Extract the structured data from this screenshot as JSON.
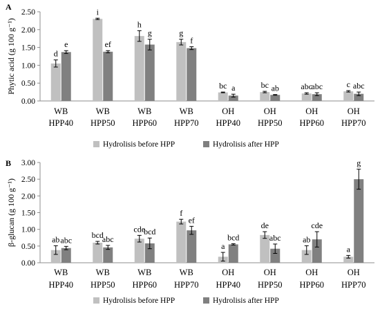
{
  "chart_data": [
    {
      "type": "bar",
      "panel_label": "A",
      "ylabel": "Phytic acid (g 100 g⁻¹)",
      "ylim": [
        0,
        2.5
      ],
      "yticks": [
        "0.00",
        "0.50",
        "1.00",
        "1.50",
        "2.00",
        "2.50"
      ],
      "categories": [
        [
          "WB",
          "HPP40"
        ],
        [
          "WB",
          "HPP50"
        ],
        [
          "WB",
          "HPP60"
        ],
        [
          "WB",
          "HPP70"
        ],
        [
          "OH",
          "HPP40"
        ],
        [
          "OH",
          "HPP50"
        ],
        [
          "OH",
          "HPP60"
        ],
        [
          "OH",
          "HPP70"
        ]
      ],
      "grid": false,
      "legend_position": "bottom",
      "series": [
        {
          "name": "Hydrolisis before HPP",
          "color": "#c0c0c0",
          "values": [
            1.05,
            2.3,
            1.82,
            1.65,
            0.24,
            0.25,
            0.21,
            0.27
          ],
          "errors": [
            0.1,
            0.02,
            0.15,
            0.08,
            0.01,
            0.02,
            0.02,
            0.02
          ],
          "labels": [
            "d",
            "i",
            "h",
            "g",
            "bc",
            "bc",
            "abc",
            "c"
          ]
        },
        {
          "name": "Hydrolisis after HPP",
          "color": "#808080",
          "values": [
            1.37,
            1.38,
            1.58,
            1.48,
            0.15,
            0.17,
            0.19,
            0.2
          ],
          "errors": [
            0.04,
            0.03,
            0.15,
            0.04,
            0.04,
            0.01,
            0.04,
            0.05
          ],
          "labels": [
            "e",
            "ef",
            "g",
            "f",
            "a",
            "ab",
            "abc",
            "abc"
          ]
        }
      ]
    },
    {
      "type": "bar",
      "panel_label": "B",
      "ylabel": "β-glucan (g 100 g⁻¹)",
      "ylim": [
        0,
        3.0
      ],
      "yticks": [
        "0.00",
        "0.50",
        "1.00",
        "1.50",
        "2.00",
        "2.50",
        "3.00"
      ],
      "categories": [
        [
          "WB",
          "HPP40"
        ],
        [
          "WB",
          "HPP50"
        ],
        [
          "WB",
          "HPP60"
        ],
        [
          "WB",
          "HPP70"
        ],
        [
          "OH",
          "HPP40"
        ],
        [
          "OH",
          "HPP50"
        ],
        [
          "OH",
          "HPP60"
        ],
        [
          "OH",
          "HPP70"
        ]
      ],
      "grid": false,
      "legend_position": "bottom",
      "series": [
        {
          "name": "Hydrolisis before HPP",
          "color": "#c0c0c0",
          "values": [
            0.38,
            0.6,
            0.72,
            1.23,
            0.18,
            0.83,
            0.38,
            0.18
          ],
          "errors": [
            0.13,
            0.04,
            0.1,
            0.07,
            0.13,
            0.1,
            0.13,
            0.04
          ],
          "labels": [
            "ab",
            "bcd",
            "cde",
            "f",
            "a",
            "de",
            "ab",
            "a"
          ]
        },
        {
          "name": "Hydrolisis after HPP",
          "color": "#808080",
          "values": [
            0.44,
            0.46,
            0.58,
            0.97,
            0.55,
            0.42,
            0.7,
            2.5
          ],
          "errors": [
            0.05,
            0.06,
            0.16,
            0.12,
            0.02,
            0.14,
            0.23,
            0.3
          ],
          "labels": [
            "abc",
            "abc",
            "bcd",
            "ef",
            "bcd",
            "abc",
            "cde",
            "g"
          ]
        }
      ]
    }
  ]
}
